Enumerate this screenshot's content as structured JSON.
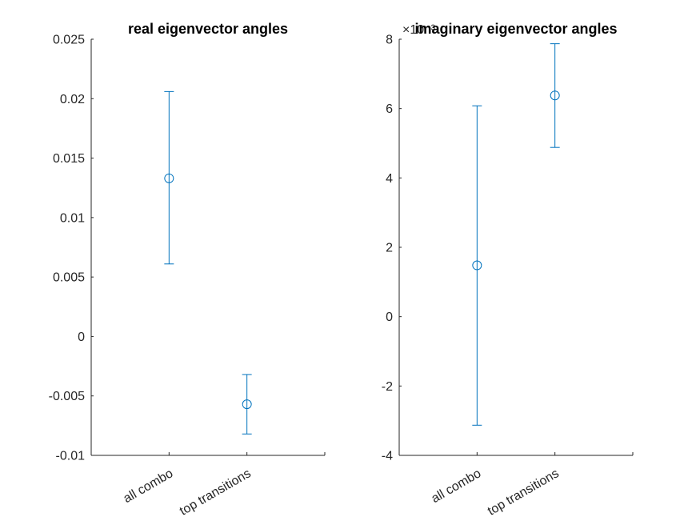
{
  "chart_data": [
    {
      "type": "errorbar",
      "title": "real eigenvector angles",
      "xlabel": "",
      "ylabel": "",
      "categories": [
        "all combo",
        "top transitions"
      ],
      "xlim": [
        0,
        3
      ],
      "ylim": [
        -0.01,
        0.025
      ],
      "yticks": [
        -0.01,
        -0.005,
        0,
        0.005,
        0.01,
        0.015,
        0.02,
        0.025
      ],
      "ytick_labels": [
        "-0.01",
        "-0.005",
        "0",
        "0.005",
        "0.01",
        "0.015",
        "0.02",
        "0.025"
      ],
      "exponent_label": "",
      "series": [
        {
          "values": [
            0.0133,
            -0.0057
          ],
          "lower": [
            0.0061,
            -0.0082
          ],
          "upper": [
            0.0206,
            -0.0032
          ]
        }
      ],
      "color": "#0072BD",
      "marker": "circle",
      "grid": false
    },
    {
      "type": "errorbar",
      "title": "imaginary eigenvector angles",
      "xlabel": "",
      "ylabel": "",
      "categories": [
        "all combo",
        "top transitions"
      ],
      "xlim": [
        0,
        3
      ],
      "ylim": [
        -4,
        8
      ],
      "yticks": [
        -4,
        -2,
        0,
        2,
        4,
        6,
        8
      ],
      "ytick_labels": [
        "-4",
        "-2",
        "0",
        "2",
        "4",
        "6",
        "8"
      ],
      "exponent_label": "×10⁻³",
      "series": [
        {
          "values": [
            1.48,
            6.38
          ],
          "lower": [
            -3.13,
            4.88
          ],
          "upper": [
            6.08,
            7.87
          ]
        }
      ],
      "color": "#0072BD",
      "marker": "circle",
      "grid": false
    }
  ]
}
